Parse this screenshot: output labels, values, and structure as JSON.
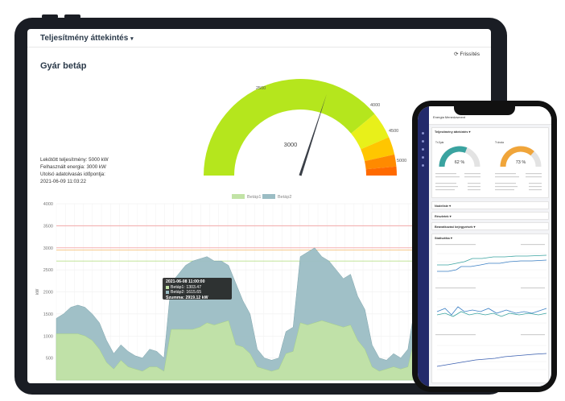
{
  "dashboard": {
    "section_title": "Teljesítmény áttekintés",
    "section_caret": "▾",
    "refresh_label": "Frissítés",
    "refresh_icon": "refresh-icon",
    "page_title": "Gyár betáp",
    "info": {
      "line1": "Lekötött teljesítmény: 5000 kW",
      "line2": "Felhasznált energia: 3000 kW",
      "line3": "Utolsó adatolvasás időpontja:",
      "line4": "2021-06-09 11:03:22"
    }
  },
  "gauge": {
    "value": 3000,
    "value_label": "3000",
    "ticks": [
      "2500",
      "4000",
      "4500",
      "5000"
    ],
    "colors": [
      "#b5e61d",
      "#e8f01a",
      "#ffc600",
      "#ff8a00",
      "#ff6a00"
    ]
  },
  "chart_data": {
    "type": "area",
    "title": "",
    "ylabel": "kW",
    "ylim": [
      0,
      4000
    ],
    "yticks": [
      "4000",
      "3500",
      "3000",
      "2500",
      "2000",
      "1500",
      "1000",
      "500"
    ],
    "legend": [
      "Betáp1",
      "Betáp2"
    ],
    "threshold_lines": [
      {
        "value": 3500,
        "color": "#f2a8a8"
      },
      {
        "value": 3000,
        "color": "#f5b0b0"
      },
      {
        "value": 2950,
        "color": "#f6c98a"
      },
      {
        "value": 2700,
        "color": "#b9e08a"
      }
    ],
    "series": [
      {
        "name": "Betáp1",
        "color": "#c2e3a6",
        "values": [
          1050,
          1050,
          1050,
          1050,
          1000,
          900,
          700,
          400,
          250,
          450,
          300,
          250,
          200,
          300,
          300,
          200,
          1150,
          1150,
          1150,
          1150,
          1200,
          1300,
          1250,
          1300,
          1350,
          800,
          750,
          600,
          300,
          250,
          200,
          250,
          600,
          650,
          1300,
          1250,
          1300,
          1350,
          1300,
          1250,
          1200,
          1250,
          900,
          700,
          300,
          200,
          250,
          300,
          250,
          300,
          1000,
          1050,
          1050,
          1050,
          1100,
          1100,
          1050,
          1000,
          1000,
          300
        ]
      },
      {
        "name": "Betáp2",
        "color": "#9bbdc4",
        "values": [
          1400,
          1500,
          1650,
          1700,
          1650,
          1500,
          1300,
          900,
          600,
          800,
          650,
          550,
          500,
          700,
          650,
          500,
          2200,
          2400,
          2600,
          2700,
          2750,
          2800,
          2700,
          2700,
          2600,
          2200,
          1800,
          1500,
          700,
          500,
          450,
          500,
          1100,
          1200,
          2800,
          2900,
          3000,
          2800,
          2700,
          2500,
          2300,
          2400,
          1900,
          1600,
          800,
          500,
          450,
          600,
          500,
          700,
          1700,
          1800,
          1900,
          1800,
          2000,
          1900,
          1800,
          1700,
          1700,
          500
        ]
      }
    ],
    "tooltip": {
      "time": "2021-06-08 11:00:00",
      "rows": [
        "Betáp1: 1303.47",
        "Betáp2: 1615.65"
      ],
      "sum": "Szumma: 2919.12 kW"
    }
  },
  "phone": {
    "app_title": "Energia Menedzsment",
    "sections": [
      "Teljesítmény áttekintés ▾",
      "Nodeliste ▾",
      "Részletek ▾",
      "Beavatkozási bejegyzések ▾",
      "Statisztika ▾"
    ],
    "gauge1": {
      "name": "Tr.Gyár",
      "pct": "62 %",
      "color": "#3aa3a0",
      "value": 62
    },
    "gauge2": {
      "name": "Tr.Iroda",
      "pct": "73 %",
      "color": "#f0a53a",
      "value": 73
    }
  }
}
